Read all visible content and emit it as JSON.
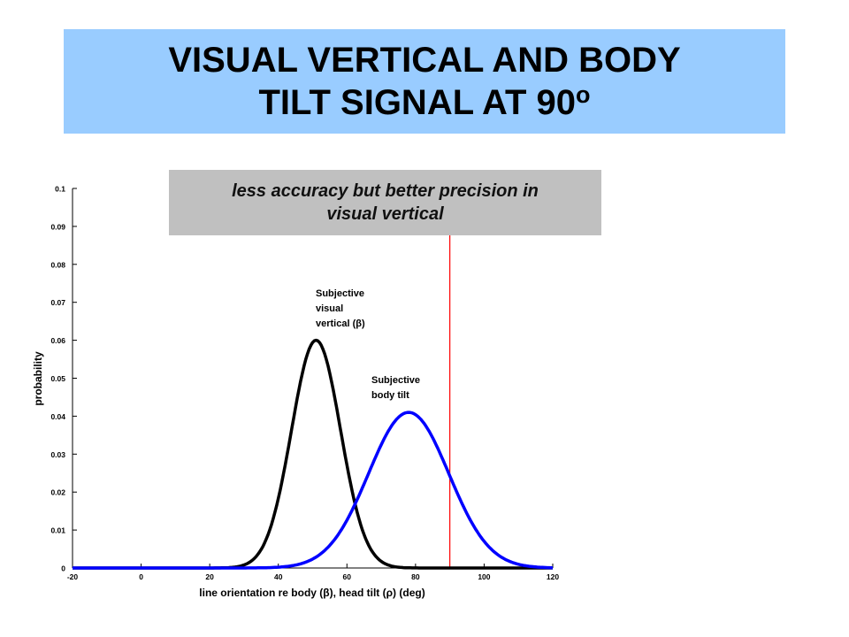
{
  "slide": {
    "title_line1": "VISUAL VERTICAL AND BODY",
    "title_line2": "TILT SIGNAL AT 90",
    "title_sup": "o",
    "title_bg": "#99ccff",
    "callout_line1": "less accuracy but better precision in",
    "callout_line2": "visual vertical",
    "callout_bg": "#c0c0c0"
  },
  "chart_data": {
    "type": "line",
    "xlabel": "line orientation re body (β), head tilt (ρ) (deg)",
    "ylabel": "probability",
    "xlim": [
      -20,
      120
    ],
    "ylim": [
      0,
      0.1
    ],
    "x_ticks": [
      "-20",
      "0",
      "20",
      "40",
      "60",
      "80",
      "100",
      "120"
    ],
    "y_ticks": [
      "0",
      "0.01",
      "0.02",
      "0.03",
      "0.04",
      "0.05",
      "0.06",
      "0.07",
      "0.08",
      "0.09",
      "0.1"
    ],
    "grid": false,
    "series": [
      {
        "label_lines": [
          "Subjective",
          "visual",
          "vertical (β)"
        ],
        "color": "#000000",
        "peak_x": 51,
        "peak_y": 0.06,
        "x": [
          -5,
          30,
          35,
          40,
          45,
          50,
          51,
          55,
          60,
          65,
          70,
          75
        ],
        "y": [
          0.0,
          0.0003,
          0.0026,
          0.0136,
          0.0405,
          0.0597,
          0.06,
          0.0534,
          0.0293,
          0.0099,
          0.002,
          0.0003
        ]
      },
      {
        "label_lines": [
          "Subjective",
          "body tilt"
        ],
        "color": "#0000ff",
        "peak_x": 78,
        "peak_y": 0.041,
        "x": [
          20,
          45,
          50,
          55,
          60,
          65,
          70,
          75,
          78,
          80,
          85,
          90,
          95,
          100,
          105,
          110
        ],
        "y": [
          0.0,
          0.001,
          0.0029,
          0.0071,
          0.0147,
          0.0252,
          0.0357,
          0.0404,
          0.041,
          0.04,
          0.033,
          0.0221,
          0.0121,
          0.0053,
          0.0019,
          0.0005
        ]
      }
    ],
    "annotations": [
      {
        "type": "vertical_line",
        "x": 90,
        "color": "#ff0000"
      }
    ]
  }
}
